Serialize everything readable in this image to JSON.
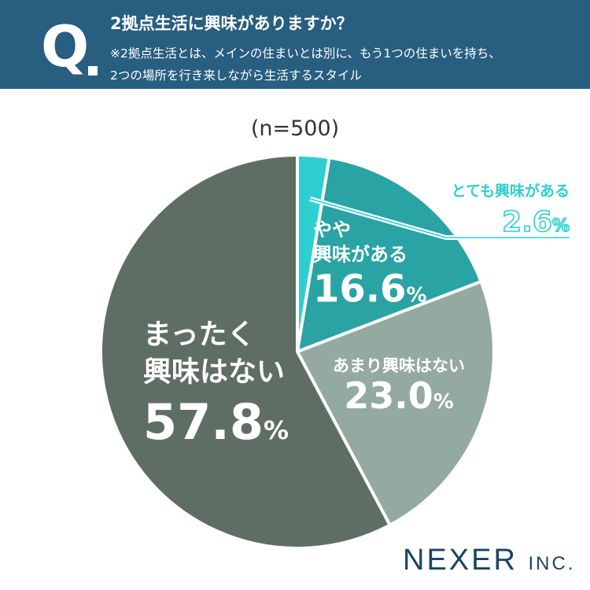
{
  "header": {
    "q_mark": "Q",
    "question": "2拠点生活に興味がありますか？",
    "note_line1": "※2拠点生活とは、メインの住まいとは別に、もう1つの住まいを持ち、",
    "note_line2": "2つの場所を行き来しながら生活するスタイル"
  },
  "sample_label": "(n=500)",
  "chart_data": {
    "type": "pie",
    "title": "2拠点生活に興味がありますか？",
    "n": "(n=500)",
    "unit": "%",
    "slices": [
      {
        "label": "とても興味がある",
        "value": 2.6,
        "value_text": "2.6",
        "color": "#2ecfd0"
      },
      {
        "label_lines": [
          "やや",
          "興味がある"
        ],
        "value": 16.6,
        "value_text": "16.6",
        "color": "#2aa3a4"
      },
      {
        "label": "あまり興味はない",
        "value": 23.0,
        "value_text": "23.0",
        "color": "#94a9a0"
      },
      {
        "label_lines": [
          "まったく",
          "興味はない"
        ],
        "value": 57.8,
        "value_text": "57.8",
        "color": "#5f6e65"
      }
    ]
  },
  "logo": {
    "main": "NEXER",
    "sub": "INC."
  }
}
